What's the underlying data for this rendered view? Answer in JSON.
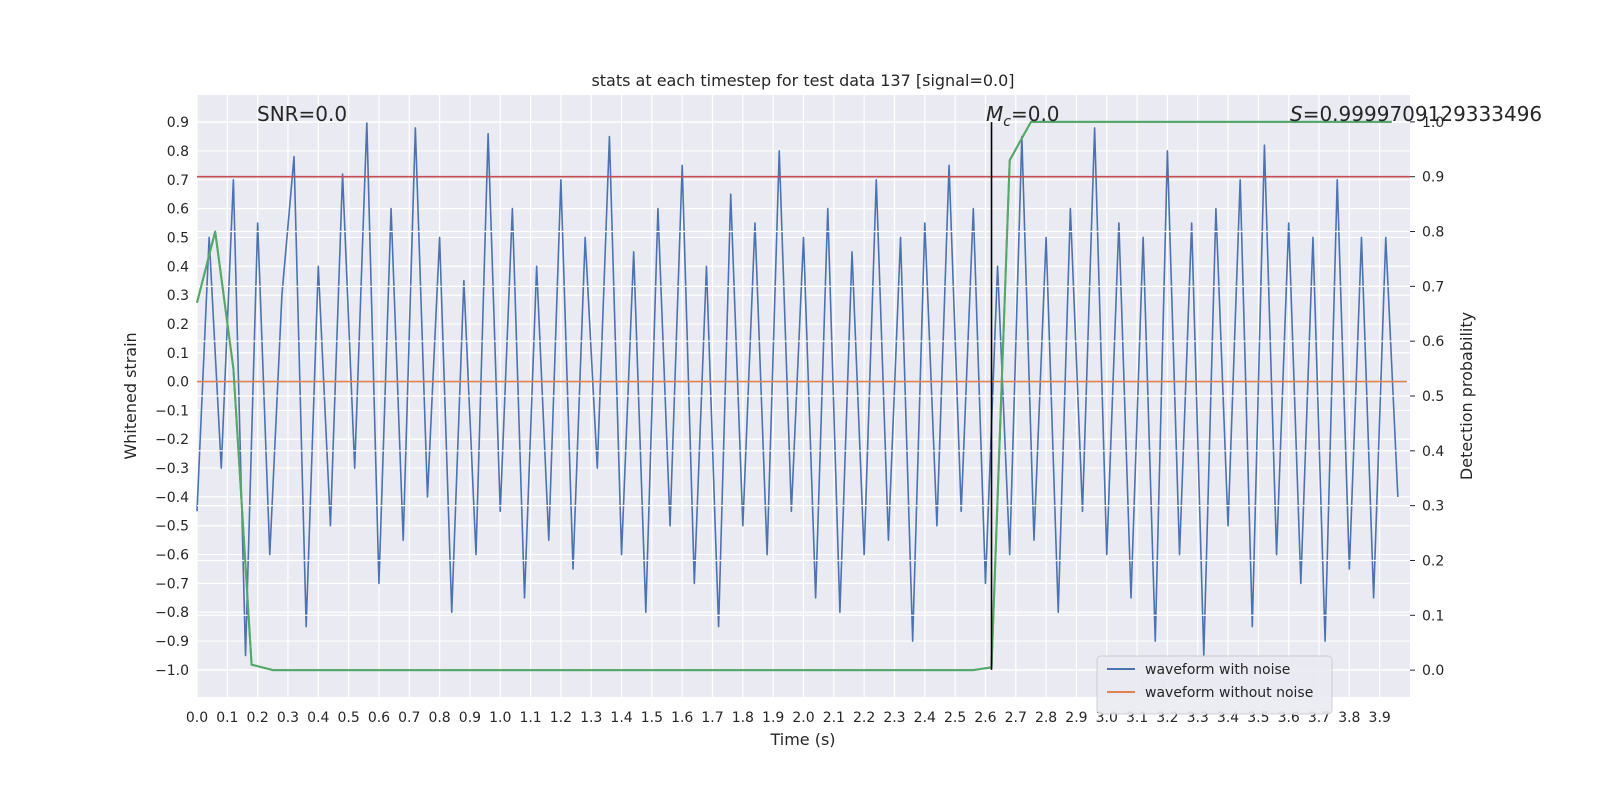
{
  "chart_data": {
    "type": "line",
    "title": "stats at each timestep for test data 137 [signal=0.0]",
    "x_label": "Time (s)",
    "y_label": "Whitened strain",
    "y2_label": "Detection probability",
    "annotations": [
      {
        "text": "SNR=0.0"
      },
      {
        "base": "M",
        "sub": "c",
        "rest": "=0.0"
      },
      {
        "base": "S",
        "rest": "=0.9999709129333496"
      }
    ],
    "grid": true,
    "legend": "lower right",
    "xlim": [
      0,
      4.0
    ],
    "ylim": [
      -1.094,
      0.994
    ],
    "y2lim": [
      -0.049,
      1.049
    ],
    "xticks": [
      {
        "value": 0,
        "label": "0.0"
      },
      0.1,
      0.2,
      0.3,
      0.4,
      0.5,
      0.6,
      0.7,
      0.8,
      0.9,
      {
        "value": 1,
        "label": "1.0"
      },
      1.1,
      1.2,
      1.3,
      1.4,
      1.5,
      1.6,
      1.7,
      1.8,
      1.9,
      {
        "value": 2,
        "label": "2.0"
      },
      2.1,
      2.2,
      2.3,
      2.4,
      2.5,
      2.6,
      2.7,
      2.8,
      2.9,
      {
        "value": 3,
        "label": "3.0"
      },
      3.1,
      3.2,
      3.3,
      3.4,
      3.5,
      3.6,
      3.7,
      3.8,
      3.9
    ],
    "yticks": [
      {
        "value": -1,
        "label": "−1.0"
      },
      {
        "value": -0.9,
        "label": "−0.9"
      },
      {
        "value": -0.8,
        "label": "−0.8"
      },
      {
        "value": -0.7,
        "label": "−0.7"
      },
      {
        "value": -0.6,
        "label": "−0.6"
      },
      {
        "value": -0.5,
        "label": "−0.5"
      },
      {
        "value": -0.4,
        "label": "−0.4"
      },
      {
        "value": -0.3,
        "label": "−0.3"
      },
      {
        "value": -0.2,
        "label": "−0.2"
      },
      {
        "value": -0.1,
        "label": "−0.1"
      },
      {
        "value": 0,
        "label": "0.0"
      },
      0.1,
      0.2,
      0.3,
      0.4,
      0.5,
      0.6,
      0.7,
      0.8,
      0.9
    ],
    "y2ticks": [
      {
        "value": 0,
        "label": "0.0"
      },
      0.1,
      0.2,
      0.3,
      0.4,
      0.5,
      0.6,
      0.7,
      0.8,
      0.9,
      {
        "value": 1,
        "label": "1.0"
      }
    ],
    "series": [
      {
        "name": "waveform with noise",
        "color": "#4c72b0",
        "x": [
          0,
          0.04,
          0.08,
          0.12,
          0.16,
          0.2,
          0.24,
          0.28,
          0.32,
          0.36,
          0.4,
          0.44,
          0.48,
          0.52,
          0.56,
          0.6,
          0.64,
          0.68,
          0.72,
          0.76,
          0.8,
          0.84,
          0.88,
          0.92,
          0.96,
          1,
          1.04,
          1.08,
          1.12,
          1.16,
          1.2,
          1.24,
          1.28,
          1.32,
          1.36,
          1.4,
          1.44,
          1.48,
          1.52,
          1.56,
          1.6,
          1.64,
          1.68,
          1.72,
          1.76,
          1.8,
          1.84,
          1.88,
          1.92,
          1.96,
          2,
          2.04,
          2.08,
          2.12,
          2.16,
          2.2,
          2.24,
          2.28,
          2.32,
          2.36,
          2.4,
          2.44,
          2.48,
          2.52,
          2.56,
          2.6,
          2.64,
          2.68,
          2.72,
          2.76,
          2.8,
          2.84,
          2.88,
          2.92,
          2.96,
          3,
          3.04,
          3.08,
          3.12,
          3.16,
          3.2,
          3.24,
          3.28,
          3.32,
          3.36,
          3.4,
          3.44,
          3.48,
          3.52,
          3.56,
          3.6,
          3.64,
          3.68,
          3.72,
          3.76,
          3.8,
          3.84,
          3.88,
          3.92,
          3.96
        ],
        "values": [
          -0.45,
          0.5,
          -0.3,
          0.7,
          -0.95,
          0.55,
          -0.6,
          0.3,
          0.78,
          -0.85,
          0.4,
          -0.5,
          0.72,
          -0.3,
          0.9,
          -0.7,
          0.6,
          -0.55,
          0.88,
          -0.4,
          0.5,
          -0.8,
          0.35,
          -0.6,
          0.86,
          -0.45,
          0.6,
          -0.75,
          0.4,
          -0.55,
          0.7,
          -0.65,
          0.5,
          -0.3,
          0.85,
          -0.6,
          0.45,
          -0.8,
          0.6,
          -0.5,
          0.75,
          -0.7,
          0.4,
          -0.85,
          0.65,
          -0.5,
          0.55,
          -0.6,
          0.8,
          -0.45,
          0.5,
          -0.75,
          0.6,
          -0.8,
          0.45,
          -0.6,
          0.7,
          -0.55,
          0.5,
          -0.9,
          0.55,
          -0.5,
          0.75,
          -0.45,
          0.6,
          -0.7,
          0.4,
          -0.6,
          0.85,
          -0.55,
          0.5,
          -0.8,
          0.6,
          -0.45,
          0.88,
          -0.6,
          0.55,
          -0.75,
          0.5,
          -0.9,
          0.8,
          -0.6,
          0.55,
          -0.95,
          0.6,
          -0.5,
          0.7,
          -0.85,
          0.82,
          -0.6,
          0.55,
          -0.7,
          0.5,
          -0.9,
          0.7,
          -0.65,
          0.5,
          -0.75,
          0.5,
          -0.4
        ]
      },
      {
        "name": "waveform without noise",
        "color": "#dd8452",
        "x": [
          0,
          3.99
        ],
        "values": [
          0,
          0
        ]
      },
      {
        "color": "#55a868",
        "axis": "y2",
        "x": [
          0,
          0.06,
          0.12,
          0.18,
          0.25,
          2.56,
          2.62,
          2.68,
          2.75,
          3.94
        ],
        "values": [
          0.67,
          0.8,
          0.55,
          0.01,
          0,
          0,
          0.005,
          0.93,
          1.0,
          1.0
        ]
      }
    ],
    "threshold": {
      "value": 0.9,
      "axis": "y2",
      "color": "#c44e52"
    },
    "vline": {
      "x": 2.62,
      "y": [
        -1.0,
        0.9
      ],
      "color": "#000000"
    }
  }
}
